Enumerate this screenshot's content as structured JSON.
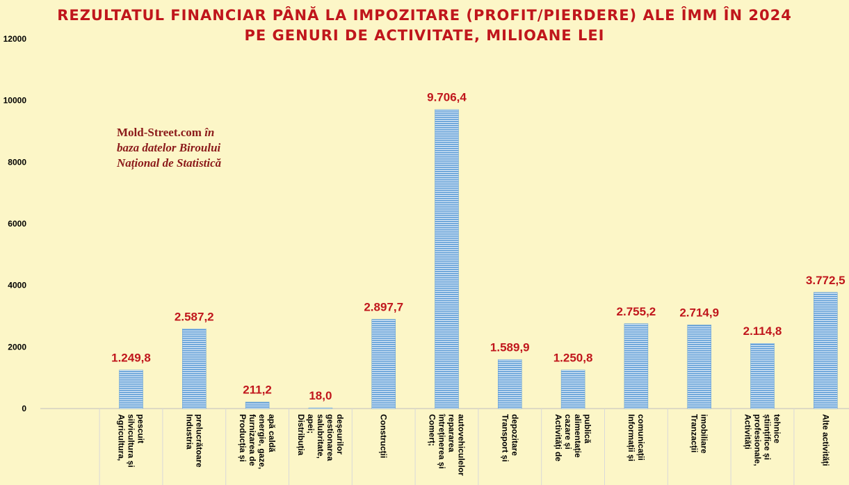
{
  "title_lines": [
    "REZULTATUL FINANCIAR PÂNĂ LA IMPOZITARE (PROFIT/PIERDERE) ALE ÎMM ÎN 2024",
    "PE GENURI DE ACTIVITATE, MILIOANE LEI"
  ],
  "source": {
    "line1_site": "Mold-Street.com",
    "line1_rest": " în",
    "line2": "baza datelor Biroului",
    "line3": "Național de Statistică"
  },
  "colors": {
    "background": "#FCF6C7",
    "title": "#C0161C",
    "data_label": "#C0161C",
    "bar_light": "#DCEAF7",
    "bar_dark": "#5B9BD5"
  },
  "chart_data": {
    "type": "bar",
    "ylim": [
      0,
      12000
    ],
    "yticks": [
      0,
      2000,
      4000,
      6000,
      8000,
      10000,
      12000
    ],
    "grid": false,
    "categories": [
      {
        "lines": [
          "Agricultura,",
          "silvicultura și",
          "pescuit"
        ]
      },
      {
        "lines": [
          "Industria",
          "prelucrătoare"
        ]
      },
      {
        "lines": [
          "Producția și",
          "furnizarea de",
          "energie, gaze,",
          "apă caldă"
        ]
      },
      {
        "lines": [
          "Distribuția",
          "apei;",
          "salubritate,",
          "gestionarea",
          "deșeurilor"
        ]
      },
      {
        "lines": [
          "Construcții"
        ]
      },
      {
        "lines": [
          "Comerț;",
          "întreținerea și",
          "repararea",
          "autovehiculelor"
        ]
      },
      {
        "lines": [
          "Transport și",
          "depozitare"
        ]
      },
      {
        "lines": [
          "Activități de",
          "cazare și",
          "alimentație",
          "publică"
        ]
      },
      {
        "lines": [
          "Informații și",
          "comunicații"
        ]
      },
      {
        "lines": [
          "Tranzacții",
          "imobiliare"
        ]
      },
      {
        "lines": [
          "Activități",
          "profesionale,",
          "științifice și",
          "tehnice"
        ]
      },
      {
        "lines": [
          "Alte activități"
        ]
      }
    ],
    "values": [
      1249.8,
      2587.2,
      211.2,
      18.0,
      2897.7,
      9706.4,
      1589.9,
      1250.8,
      2755.2,
      2714.9,
      2114.8,
      3772.5
    ],
    "data_labels": [
      "1.249,8",
      "2.587,2",
      "211,2",
      "18,0",
      "2.897,7",
      "9.706,4",
      "1.589,9",
      "1.250,8",
      "2.755,2",
      "2.714,9",
      "2.114,8",
      "3.772,5"
    ]
  }
}
